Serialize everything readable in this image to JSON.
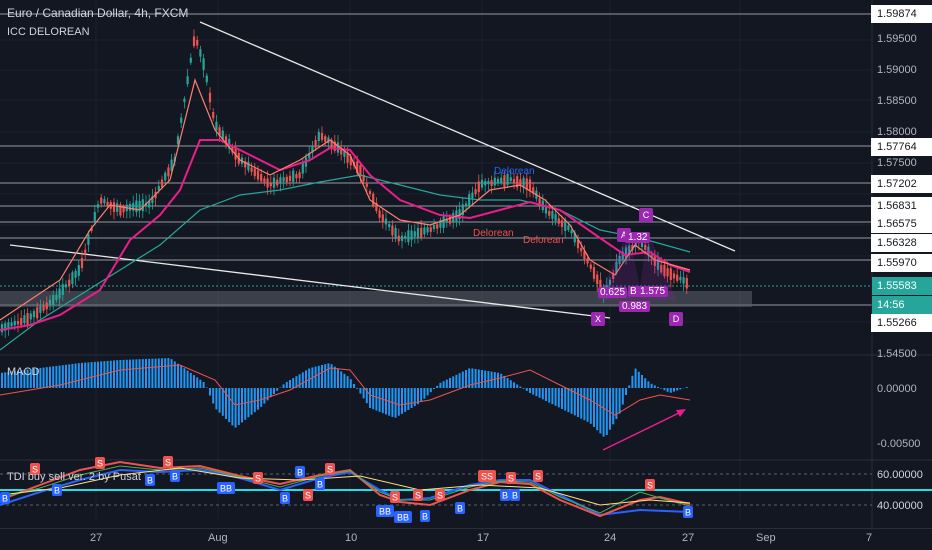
{
  "header": {
    "title": "Euro / Canadian Dollar, 4h, FXCM",
    "indicator": "ICC DELOREAN"
  },
  "macd_label": "MACD",
  "tdi_label": "TDI buy sell ver. 2 by Pusat",
  "colors": {
    "background": "#131722",
    "up_candle": "#26a69a",
    "down_candle": "#ef5350",
    "ma_pink": "#e91e8c",
    "ma_teal": "#26a69a",
    "ma_orange": "#ff9e80",
    "trendline": "#ffffff",
    "current_price": "#26a69a",
    "pattern": "#9c27b0"
  },
  "price_axis": {
    "ticks": [
      "1.59874",
      "1.59500",
      "1.59000",
      "1.58500",
      "1.58000",
      "1.57764",
      "1.57500",
      "1.57202",
      "1.56831",
      "1.56575",
      "1.56328",
      "1.55970",
      "1.55583",
      "1.55266",
      "1.54500"
    ],
    "current_price": "1.55583",
    "countdown": "14:56",
    "boxed": [
      "1.59874",
      "1.57764",
      "1.57202",
      "1.56831",
      "1.56575",
      "1.56328",
      "1.55970",
      "1.55266"
    ]
  },
  "macd_axis": {
    "ticks": [
      "0.00000",
      "-0.00500"
    ]
  },
  "tdi_axis": {
    "ticks": [
      "60.00000",
      "40.00000"
    ]
  },
  "time_axis": {
    "ticks": [
      "27",
      "Aug",
      "10",
      "17",
      "24",
      "27",
      "Sep",
      "7"
    ]
  },
  "chart_labels": {
    "delorean_1": "Delorean",
    "delorean_2": "Delorean",
    "delorean_3": "Delorean",
    "pattern_x": "X",
    "pattern_a": "A",
    "pattern_b": "B",
    "pattern_c": "C",
    "pattern_d": "D",
    "ratio_xb": "0.625",
    "ratio_bd": "1.575",
    "ratio_xd": "0.983",
    "ratio_ac": "1.32"
  },
  "signals": {
    "buy": "B",
    "sell": "S",
    "buy_double": "BB",
    "sell_double": "SS"
  }
}
